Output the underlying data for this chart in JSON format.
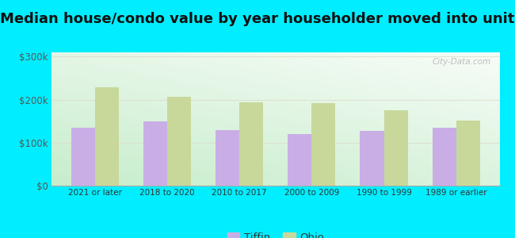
{
  "title": "Median house/condo value by year householder moved into unit",
  "categories": [
    "2021 or later",
    "2018 to 2020",
    "2010 to 2017",
    "2000 to 2009",
    "1990 to 1999",
    "1989 or earlier"
  ],
  "tiffin_values": [
    135000,
    150000,
    130000,
    120000,
    128000,
    135000
  ],
  "ohio_values": [
    228000,
    207000,
    193000,
    192000,
    175000,
    152000
  ],
  "tiffin_color": "#c9aee5",
  "ohio_color": "#c8d89a",
  "outer_background": "#00eeff",
  "ylabel_ticks": [
    "$0",
    "$100k",
    "$200k",
    "$300k"
  ],
  "ytick_values": [
    0,
    100000,
    200000,
    300000
  ],
  "ylim": [
    0,
    310000
  ],
  "legend_labels": [
    "Tiffin",
    "Ohio"
  ],
  "title_fontsize": 13,
  "watermark": "City-Data.com"
}
